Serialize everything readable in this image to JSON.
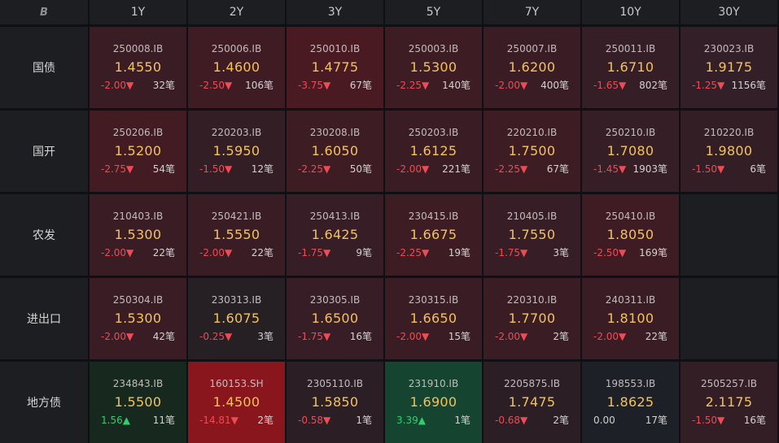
{
  "header": {
    "logo": "B",
    "tenors": [
      "1Y",
      "2Y",
      "3Y",
      "5Y",
      "7Y",
      "10Y",
      "30Y"
    ]
  },
  "colors": {
    "down": "#ee4b55",
    "up": "#2fcf6c",
    "yield": "#f3c25d"
  },
  "rows": [
    {
      "label": "国债",
      "cells": [
        {
          "code": "250008.IB",
          "yield": "1.4550",
          "change": "-2.00▼",
          "count": "32笔",
          "dir": "down",
          "bg": "#3a1d24"
        },
        {
          "code": "250006.IB",
          "yield": "1.4600",
          "change": "-2.50▼",
          "count": "106笔",
          "dir": "down",
          "bg": "#3f1c24"
        },
        {
          "code": "250010.IB",
          "yield": "1.4775",
          "change": "-3.75▼",
          "count": "67笔",
          "dir": "down",
          "bg": "#4a1a22"
        },
        {
          "code": "250003.IB",
          "yield": "1.5300",
          "change": "-2.25▼",
          "count": "140笔",
          "dir": "down",
          "bg": "#3d1c24"
        },
        {
          "code": "250007.IB",
          "yield": "1.6200",
          "change": "-2.00▼",
          "count": "400笔",
          "dir": "down",
          "bg": "#3a1d24"
        },
        {
          "code": "250011.IB",
          "yield": "1.6710",
          "change": "-1.65▼",
          "count": "802笔",
          "dir": "down",
          "bg": "#361e26"
        },
        {
          "code": "230023.IB",
          "yield": "1.9175",
          "change": "-1.25▼",
          "count": "1156笔",
          "dir": "down",
          "bg": "#331f27"
        }
      ]
    },
    {
      "label": "国开",
      "cells": [
        {
          "code": "250206.IB",
          "yield": "1.5200",
          "change": "-2.75▼",
          "count": "54笔",
          "dir": "down",
          "bg": "#421b23"
        },
        {
          "code": "220203.IB",
          "yield": "1.5950",
          "change": "-1.50▼",
          "count": "12笔",
          "dir": "down",
          "bg": "#341e26"
        },
        {
          "code": "230208.IB",
          "yield": "1.6050",
          "change": "-2.25▼",
          "count": "50笔",
          "dir": "down",
          "bg": "#3d1c24"
        },
        {
          "code": "250203.IB",
          "yield": "1.6125",
          "change": "-2.00▼",
          "count": "221笔",
          "dir": "down",
          "bg": "#3a1d24"
        },
        {
          "code": "220210.IB",
          "yield": "1.7500",
          "change": "-2.25▼",
          "count": "67笔",
          "dir": "down",
          "bg": "#3d1c24"
        },
        {
          "code": "250210.IB",
          "yield": "1.7080",
          "change": "-1.45▼",
          "count": "1903笔",
          "dir": "down",
          "bg": "#351e26"
        },
        {
          "code": "210220.IB",
          "yield": "1.9800",
          "change": "-1.50▼",
          "count": "6笔",
          "dir": "down",
          "bg": "#341e26"
        }
      ]
    },
    {
      "label": "农发",
      "cells": [
        {
          "code": "210403.IB",
          "yield": "1.5300",
          "change": "-2.00▼",
          "count": "22笔",
          "dir": "down",
          "bg": "#3a1d24"
        },
        {
          "code": "250421.IB",
          "yield": "1.5550",
          "change": "-2.00▼",
          "count": "22笔",
          "dir": "down",
          "bg": "#3a1d24"
        },
        {
          "code": "250413.IB",
          "yield": "1.6425",
          "change": "-1.75▼",
          "count": "9笔",
          "dir": "down",
          "bg": "#371d25"
        },
        {
          "code": "230415.IB",
          "yield": "1.6675",
          "change": "-2.25▼",
          "count": "19笔",
          "dir": "down",
          "bg": "#3d1c24"
        },
        {
          "code": "210405.IB",
          "yield": "1.7550",
          "change": "-1.75▼",
          "count": "3笔",
          "dir": "down",
          "bg": "#371d25"
        },
        {
          "code": "250410.IB",
          "yield": "1.8050",
          "change": "-2.50▼",
          "count": "169笔",
          "dir": "down",
          "bg": "#3f1c24"
        },
        null
      ]
    },
    {
      "label": "进出口",
      "cells": [
        {
          "code": "250304.IB",
          "yield": "1.5300",
          "change": "-2.00▼",
          "count": "42笔",
          "dir": "down",
          "bg": "#3a1d24"
        },
        {
          "code": "230313.IB",
          "yield": "1.6075",
          "change": "-0.25▼",
          "count": "3笔",
          "dir": "down",
          "bg": "#262025"
        },
        {
          "code": "230305.IB",
          "yield": "1.6500",
          "change": "-1.75▼",
          "count": "16笔",
          "dir": "down",
          "bg": "#371d25"
        },
        {
          "code": "230315.IB",
          "yield": "1.6650",
          "change": "-2.00▼",
          "count": "15笔",
          "dir": "down",
          "bg": "#3a1d24"
        },
        {
          "code": "220310.IB",
          "yield": "1.7700",
          "change": "-2.00▼",
          "count": "2笔",
          "dir": "down",
          "bg": "#3a1d24"
        },
        {
          "code": "240311.IB",
          "yield": "1.8100",
          "change": "-2.00▼",
          "count": "22笔",
          "dir": "down",
          "bg": "#3a1d24"
        },
        null
      ]
    },
    {
      "label": "地方债",
      "cells": [
        {
          "code": "234843.IB",
          "yield": "1.5500",
          "change": "1.56▲",
          "count": "11笔",
          "dir": "up",
          "bg": "#17291f"
        },
        {
          "code": "160153.SH",
          "yield": "1.4500",
          "change": "-14.81▼",
          "count": "2笔",
          "dir": "down",
          "bg": "#8a161d"
        },
        {
          "code": "2305110.IB",
          "yield": "1.5850",
          "change": "-0.58▼",
          "count": "1笔",
          "dir": "down",
          "bg": "#2b1f25"
        },
        {
          "code": "231910.IB",
          "yield": "1.6900",
          "change": "3.39▲",
          "count": "1笔",
          "dir": "up",
          "bg": "#154530"
        },
        {
          "code": "2205875.IB",
          "yield": "1.7475",
          "change": "-0.68▼",
          "count": "2笔",
          "dir": "down",
          "bg": "#2b1f25"
        },
        {
          "code": "198553.IB",
          "yield": "1.8625",
          "change": "0.00",
          "count": "17笔",
          "dir": "flat",
          "bg": "#1d2026"
        },
        {
          "code": "2505257.IB",
          "yield": "2.1175",
          "change": "-1.50▼",
          "count": "16笔",
          "dir": "down",
          "bg": "#341e26"
        }
      ]
    }
  ]
}
